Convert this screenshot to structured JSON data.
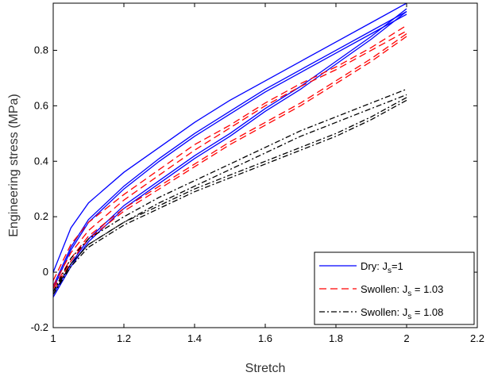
{
  "chart_data": {
    "type": "line",
    "title": "",
    "xlabel": "Stretch",
    "ylabel": "Engineering stress (MPa)",
    "xlim": [
      1,
      2.2
    ],
    "ylim": [
      -0.2,
      0.97
    ],
    "xticks": [
      1,
      1.2,
      1.4,
      1.6,
      1.8,
      2,
      2.2
    ],
    "xtick_labels": [
      "1",
      "1.2",
      "1.4",
      "1.6",
      "1.8",
      "2",
      "2.2"
    ],
    "yticks": [
      -0.2,
      0,
      0.2,
      0.4,
      0.6,
      0.8
    ],
    "ytick_labels": [
      "-0.2",
      "0",
      "0.2",
      "0.4",
      "0.6",
      "0.8"
    ],
    "grid": false,
    "legend_position": "bottom-right",
    "legend": [
      {
        "main": "Dry: J",
        "sub": "s",
        "tail": "=1",
        "color": "#0000ff",
        "dash": "solid"
      },
      {
        "main": "Swollen: J",
        "sub": "s",
        "tail": " = 1.03",
        "color": "#ff0000",
        "dash": "dashed"
      },
      {
        "main": "Swollen: J",
        "sub": "s",
        "tail": " = 1.08",
        "color": "#000000",
        "dash": "dashdot"
      }
    ],
    "series": [
      {
        "group": "Dry",
        "color": "#0000ff",
        "dash": "solid",
        "curves": [
          {
            "x": [
              1,
              1.05,
              1.1,
              1.2,
              1.3,
              1.4,
              1.5,
              1.6,
              1.7,
              1.8,
              1.9,
              2
            ],
            "y": [
              0.0,
              0.16,
              0.25,
              0.36,
              0.45,
              0.54,
              0.62,
              0.69,
              0.76,
              0.83,
              0.9,
              0.97
            ]
          },
          {
            "x": [
              1,
              1.05,
              1.1,
              1.2,
              1.3,
              1.4,
              1.5,
              1.6,
              1.7,
              1.8,
              1.9,
              2
            ],
            "y": [
              -0.05,
              0.09,
              0.19,
              0.31,
              0.41,
              0.5,
              0.58,
              0.66,
              0.73,
              0.8,
              0.87,
              0.94
            ]
          },
          {
            "x": [
              1,
              1.05,
              1.1,
              1.2,
              1.3,
              1.4,
              1.5,
              1.6,
              1.7,
              1.8,
              1.9,
              2
            ],
            "y": [
              -0.06,
              0.08,
              0.18,
              0.3,
              0.4,
              0.49,
              0.57,
              0.65,
              0.72,
              0.79,
              0.86,
              0.93
            ]
          },
          {
            "x": [
              2,
              1.9,
              1.8,
              1.7,
              1.6,
              1.5,
              1.4,
              1.3,
              1.2,
              1.1,
              1.05,
              1
            ],
            "y": [
              0.95,
              0.85,
              0.76,
              0.67,
              0.59,
              0.5,
              0.42,
              0.33,
              0.24,
              0.12,
              0.03,
              -0.08
            ]
          },
          {
            "x": [
              2,
              1.9,
              1.8,
              1.7,
              1.6,
              1.5,
              1.4,
              1.3,
              1.2,
              1.1,
              1.05,
              1
            ],
            "y": [
              0.94,
              0.84,
              0.75,
              0.66,
              0.58,
              0.49,
              0.41,
              0.32,
              0.23,
              0.11,
              0.02,
              -0.09
            ]
          }
        ]
      },
      {
        "group": "Swollen 1.03",
        "color": "#ff0000",
        "dash": "dashed",
        "curves": [
          {
            "x": [
              1,
              1.05,
              1.1,
              1.2,
              1.3,
              1.4,
              1.5,
              1.6,
              1.7,
              1.8,
              1.9,
              2
            ],
            "y": [
              -0.03,
              0.1,
              0.18,
              0.28,
              0.37,
              0.46,
              0.53,
              0.61,
              0.68,
              0.74,
              0.81,
              0.89
            ]
          },
          {
            "x": [
              1,
              1.05,
              1.1,
              1.2,
              1.3,
              1.4,
              1.5,
              1.6,
              1.7,
              1.8,
              1.9,
              2
            ],
            "y": [
              -0.05,
              0.07,
              0.15,
              0.26,
              0.35,
              0.44,
              0.52,
              0.6,
              0.67,
              0.73,
              0.8,
              0.87
            ]
          },
          {
            "x": [
              2,
              1.9,
              1.8,
              1.7,
              1.6,
              1.5,
              1.4,
              1.3,
              1.2,
              1.1,
              1.05,
              1
            ],
            "y": [
              0.86,
              0.77,
              0.69,
              0.61,
              0.54,
              0.47,
              0.39,
              0.31,
              0.23,
              0.13,
              0.05,
              -0.06
            ]
          },
          {
            "x": [
              2,
              1.9,
              1.8,
              1.7,
              1.6,
              1.5,
              1.4,
              1.3,
              1.2,
              1.1,
              1.05,
              1
            ],
            "y": [
              0.85,
              0.76,
              0.68,
              0.6,
              0.53,
              0.46,
              0.38,
              0.3,
              0.22,
              0.12,
              0.04,
              -0.07
            ]
          }
        ]
      },
      {
        "group": "Swollen 1.08",
        "color": "#000000",
        "dash": "dashdot",
        "curves": [
          {
            "x": [
              1,
              1.05,
              1.1,
              1.2,
              1.3,
              1.4,
              1.5,
              1.6,
              1.7,
              1.8,
              1.9,
              2
            ],
            "y": [
              -0.07,
              0.05,
              0.12,
              0.2,
              0.27,
              0.33,
              0.39,
              0.45,
              0.51,
              0.56,
              0.61,
              0.66
            ]
          },
          {
            "x": [
              1,
              1.05,
              1.1,
              1.2,
              1.3,
              1.4,
              1.5,
              1.6,
              1.7,
              1.8,
              1.9,
              2
            ],
            "y": [
              -0.08,
              0.03,
              0.1,
              0.18,
              0.25,
              0.31,
              0.37,
              0.43,
              0.49,
              0.54,
              0.59,
              0.64
            ]
          },
          {
            "x": [
              2,
              1.9,
              1.8,
              1.7,
              1.6,
              1.5,
              1.4,
              1.3,
              1.2,
              1.1,
              1.05,
              1
            ],
            "y": [
              0.63,
              0.56,
              0.5,
              0.45,
              0.4,
              0.35,
              0.3,
              0.24,
              0.18,
              0.1,
              0.03,
              -0.07
            ]
          },
          {
            "x": [
              2,
              1.9,
              1.8,
              1.7,
              1.6,
              1.5,
              1.4,
              1.3,
              1.2,
              1.1,
              1.05,
              1
            ],
            "y": [
              0.62,
              0.55,
              0.49,
              0.44,
              0.39,
              0.34,
              0.29,
              0.23,
              0.17,
              0.09,
              0.02,
              -0.08
            ]
          }
        ]
      }
    ]
  }
}
